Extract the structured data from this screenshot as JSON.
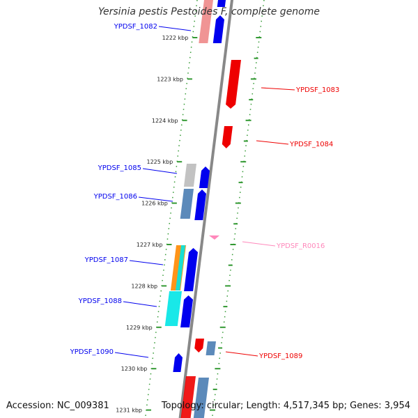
{
  "title": "Yersinia pestis Pestoides F, complete genome",
  "footer": {
    "accession": "Accession: NC_009381",
    "summary": "Topology: circular; Length: 4,517,345 bp; Genes: 3,954"
  },
  "colors": {
    "forward_gene": "#0000ee",
    "reverse_gene": "#ee0000",
    "rna_gene": "#ff88bb",
    "tick": "#339933",
    "backbone": "#888888",
    "cds_gray": "#bbbbbb",
    "cds_steel": "#4a7db3",
    "cds_orange": "#ff8800",
    "cds_cyan": "#00e5e5",
    "cds_pink": "#ee8888"
  },
  "ticks": [
    "1222 kbp",
    "1223 kbp",
    "1224 kbp",
    "1225 kbp",
    "1226 kbp",
    "1227 kbp",
    "1228 kbp",
    "1229 kbp",
    "1230 kbp",
    "1231 kbp"
  ],
  "genes": [
    {
      "id": "YPDSF_1082",
      "strand": "+"
    },
    {
      "id": "YPDSF_1083",
      "strand": "-"
    },
    {
      "id": "YPDSF_1084",
      "strand": "-"
    },
    {
      "id": "YPDSF_1085",
      "strand": "+"
    },
    {
      "id": "YPDSF_1086",
      "strand": "+"
    },
    {
      "id": "YPDSF_R0016",
      "strand": "-"
    },
    {
      "id": "YPDSF_1087",
      "strand": "+"
    },
    {
      "id": "YPDSF_1088",
      "strand": "+"
    },
    {
      "id": "YPDSF_1089",
      "strand": "-"
    },
    {
      "id": "YPDSF_1090",
      "strand": "+"
    }
  ]
}
